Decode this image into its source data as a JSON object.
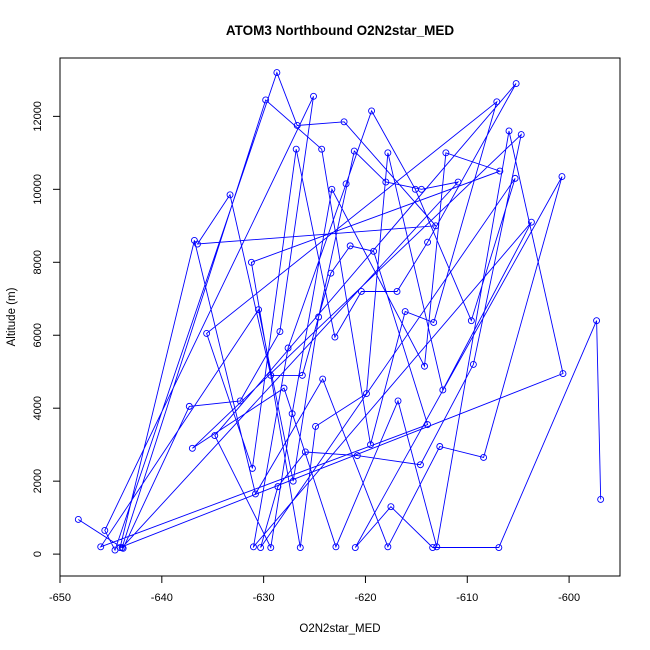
{
  "chart_data": {
    "type": "line",
    "title": "ATOM3 Northbound O2N2star_MED",
    "xlabel": "O2N2star_MED",
    "ylabel": "Altitude (m)",
    "xlim": [
      -650,
      -595
    ],
    "ylim": [
      -600,
      13600
    ],
    "xticks": [
      -650,
      -640,
      -630,
      -620,
      -610,
      -600
    ],
    "yticks": [
      0,
      2000,
      4000,
      6000,
      8000,
      10000,
      12000
    ],
    "grid": false,
    "legend": "none",
    "marker": "open-circle",
    "color": "#0000ff",
    "series": [
      {
        "x": [
          -648.2,
          -643.8,
          -637.3,
          -632.3,
          -628.4,
          -625.1,
          -645.6,
          -644.6,
          -628.7,
          -626.7,
          -622.1,
          -613.1,
          -636.5,
          -633.3,
          -629.3,
          -626.2,
          -623.4,
          -621.5,
          -619.2,
          -613.9,
          -646.0,
          -630.5,
          -627.1,
          -624.6,
          -621.1,
          -618.0,
          -614.5,
          -610.9,
          -643.9,
          -629.8,
          -624.3,
          -619.5,
          -616.1,
          -613.3,
          -607.1,
          -635.6,
          -631.1,
          -626.8,
          -623.0,
          -620.4,
          -616.9,
          -613.9,
          -605.2,
          -634.8,
          -629.3,
          -627.2,
          -623.3,
          -614.2,
          -612.1,
          -606.8,
          -631.2,
          -626.4,
          -624.9,
          -619.9,
          -617.8,
          -612.4,
          -603.7,
          -631.0,
          -627.6,
          -621.9,
          -619.4,
          -615.1,
          -609.6,
          -605.3,
          -630.3,
          -628.6,
          -625.9,
          -620.8,
          -614.6,
          -609.4,
          -604.7,
          -637.0,
          -628.0,
          -622.9,
          -616.8,
          -613.0,
          -605.9,
          -600.6,
          -644.1,
          -636.8,
          -630.8,
          -624.2,
          -617.8,
          -612.7,
          -608.4,
          -600.7,
          -621.0,
          -617.5,
          -613.4,
          -606.9,
          -597.3,
          -596.9
        ],
        "y": [
          950,
          160,
          4050,
          4200,
          6100,
          12550,
          650,
          110,
          13200,
          11750,
          11850,
          9000,
          8500,
          9850,
          4900,
          4900,
          7700,
          8450,
          8300,
          3550,
          200,
          6700,
          2000,
          6500,
          11050,
          10200,
          10000,
          10200,
          180,
          12450,
          11100,
          3000,
          6650,
          6350,
          12400,
          6050,
          2350,
          11100,
          5950,
          7200,
          7200,
          8550,
          12900,
          3250,
          180,
          3850,
          10000,
          5150,
          11000,
          10500,
          8000,
          180,
          3500,
          4400,
          11000,
          4500,
          9100,
          200,
          5650,
          10150,
          12150,
          10000,
          6400,
          10300,
          180,
          1850,
          2800,
          2700,
          2450,
          5200,
          11500,
          2900,
          4550,
          200,
          4200,
          200,
          11600,
          4950,
          180,
          8600,
          1650,
          4800,
          200,
          2950,
          2650,
          10350,
          180,
          1300,
          180,
          180,
          6400,
          1500
        ]
      }
    ]
  }
}
